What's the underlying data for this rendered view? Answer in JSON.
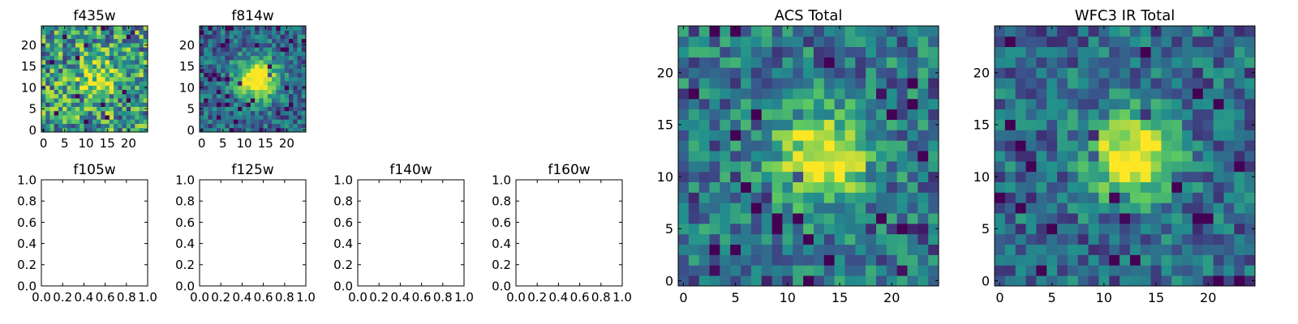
{
  "colormap": [
    "#440154",
    "#3b528b",
    "#21908d",
    "#5dc962",
    "#fde725"
  ],
  "chart_data": [
    {
      "type": "heatmap",
      "title": "f435w",
      "grid": false,
      "xlim": [
        -0.5,
        24.5
      ],
      "ylim": [
        -0.5,
        24.5
      ],
      "xticks": [
        0,
        5,
        10,
        15,
        20
      ],
      "yticks": [
        0,
        5,
        10,
        15,
        20
      ],
      "image": {
        "size": 25,
        "seed": 11,
        "noise": 0.75,
        "peak": 0.35,
        "cx": 13,
        "cy": 12,
        "sigma": 3.0,
        "bias": 0.55
      }
    },
    {
      "type": "heatmap",
      "title": "f814w",
      "grid": false,
      "xlim": [
        -0.5,
        24.5
      ],
      "ylim": [
        -0.5,
        24.5
      ],
      "xticks": [
        0,
        5,
        10,
        15,
        20
      ],
      "yticks": [
        0,
        5,
        10,
        15,
        20
      ],
      "image": {
        "size": 25,
        "seed": 29,
        "noise": 0.45,
        "peak": 0.85,
        "cx": 13,
        "cy": 12,
        "sigma": 3.2,
        "bias": 0.35
      }
    },
    {
      "type": "line",
      "title": "f105w",
      "series": [],
      "xlim": [
        0.0,
        1.0
      ],
      "ylim": [
        0.0,
        1.0
      ],
      "xticklabels": [
        "0.0",
        "0.2",
        "0.4",
        "0.6",
        "0.8",
        "1.0"
      ],
      "yticklabels": [
        "0.0",
        "0.2",
        "0.4",
        "0.6",
        "0.8",
        "1.0"
      ]
    },
    {
      "type": "line",
      "title": "f125w",
      "series": [],
      "xlim": [
        0.0,
        1.0
      ],
      "ylim": [
        0.0,
        1.0
      ],
      "xticklabels": [
        "0.0",
        "0.2",
        "0.4",
        "0.6",
        "0.8",
        "1.0"
      ],
      "yticklabels": [
        "0.0",
        "0.2",
        "0.4",
        "0.6",
        "0.8",
        "1.0"
      ]
    },
    {
      "type": "line",
      "title": "f140w",
      "series": [],
      "xlim": [
        0.0,
        1.0
      ],
      "ylim": [
        0.0,
        1.0
      ],
      "xticklabels": [
        "0.0",
        "0.2",
        "0.4",
        "0.6",
        "0.8",
        "1.0"
      ],
      "yticklabels": [
        "0.0",
        "0.2",
        "0.4",
        "0.6",
        "0.8",
        "1.0"
      ]
    },
    {
      "type": "line",
      "title": "f160w",
      "series": [],
      "xlim": [
        0.0,
        1.0
      ],
      "ylim": [
        0.0,
        1.0
      ],
      "xticklabels": [
        "0.0",
        "0.2",
        "0.4",
        "0.6",
        "0.8",
        "1.0"
      ],
      "yticklabels": [
        "0.0",
        "0.2",
        "0.4",
        "0.6",
        "0.8",
        "1.0"
      ]
    },
    {
      "type": "heatmap",
      "title": "ACS Total",
      "grid": false,
      "xlim": [
        -0.5,
        24.5
      ],
      "ylim": [
        -0.5,
        24.5
      ],
      "xticks": [
        0,
        5,
        10,
        15,
        20
      ],
      "yticks": [
        0,
        5,
        10,
        15,
        20
      ],
      "image": {
        "size": 25,
        "seed": 47,
        "noise": 0.5,
        "peak": 0.7,
        "cx": 13.5,
        "cy": 12,
        "sigma": 3.0,
        "bias": 0.4
      }
    },
    {
      "type": "heatmap",
      "title": "WFC3 IR Total",
      "grid": false,
      "xlim": [
        -0.5,
        24.5
      ],
      "ylim": [
        -0.5,
        24.5
      ],
      "xticks": [
        0,
        5,
        10,
        15,
        20
      ],
      "yticks": [
        0,
        5,
        10,
        15,
        20
      ],
      "image": {
        "size": 25,
        "seed": 83,
        "noise": 0.45,
        "peak": 0.75,
        "cx": 12.5,
        "cy": 12,
        "sigma": 2.8,
        "bias": 0.35
      }
    }
  ]
}
